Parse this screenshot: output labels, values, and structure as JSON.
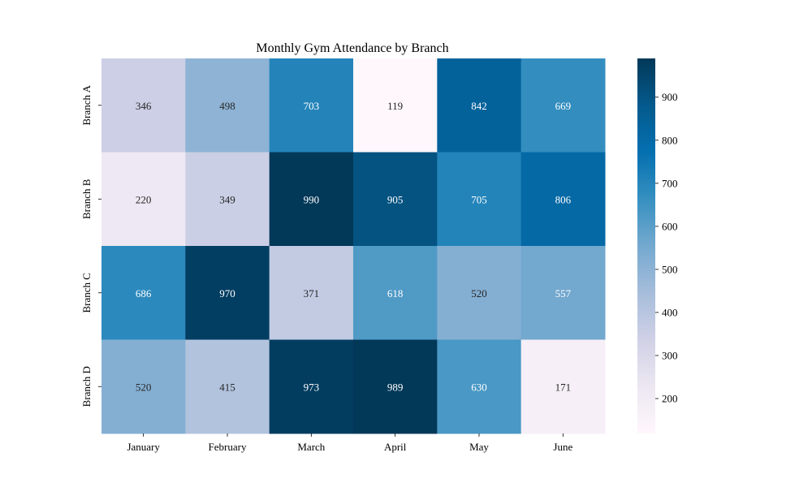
{
  "chart_data": {
    "type": "heatmap",
    "title": "Monthly Gym Attendance by Branch",
    "xlabel": "",
    "ylabel": "",
    "columns": [
      "January",
      "February",
      "March",
      "April",
      "May",
      "June"
    ],
    "rows": [
      "Branch A",
      "Branch B",
      "Branch C",
      "Branch D"
    ],
    "values": [
      [
        346,
        498,
        703,
        119,
        842,
        669
      ],
      [
        220,
        349,
        990,
        905,
        705,
        806
      ],
      [
        686,
        970,
        371,
        618,
        520,
        557
      ],
      [
        520,
        415,
        973,
        989,
        630,
        171
      ]
    ],
    "color_scale": {
      "min": 119,
      "max": 990,
      "colormap": "PuBu",
      "ticks": [
        200,
        300,
        400,
        500,
        600,
        700,
        800,
        900
      ]
    },
    "annotations": true,
    "grid": false,
    "colorbar": "right"
  }
}
